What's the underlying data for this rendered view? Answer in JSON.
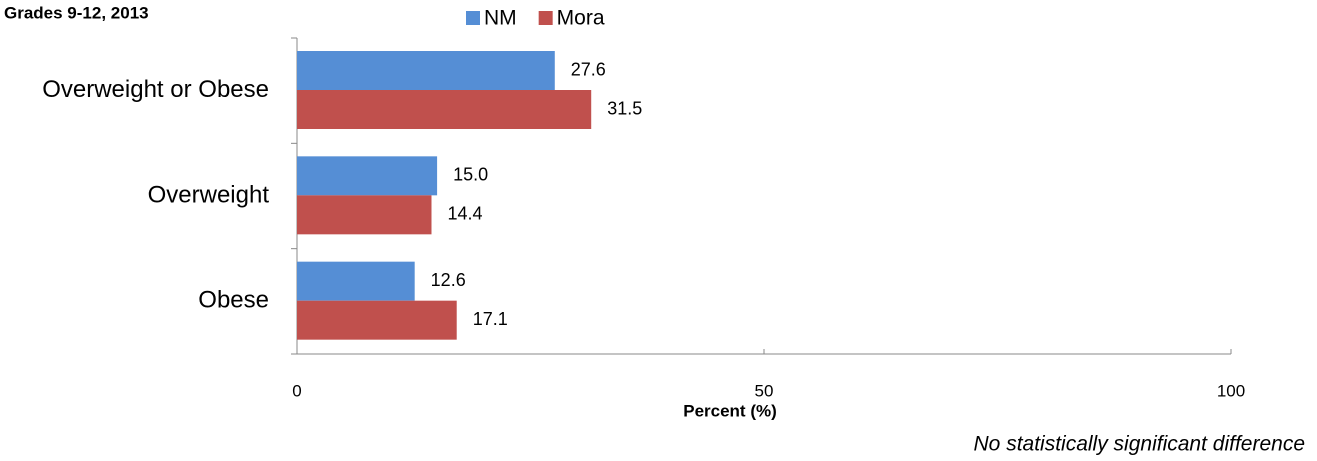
{
  "chart_data": {
    "type": "bar",
    "orientation": "horizontal",
    "title": "Grades 9-12, 2013",
    "x_label": "Percent (%)",
    "annotation": "No statistically significant difference",
    "categories": [
      "Overweight or Obese",
      "Overweight",
      "Obese"
    ],
    "series": [
      {
        "name": "NM",
        "color": "#558ed5",
        "values": [
          27.6,
          15.0,
          12.6
        ],
        "value_labels": [
          "27.6",
          "15.0",
          "12.6"
        ]
      },
      {
        "name": "Mora",
        "color": "#c0504d",
        "values": [
          31.5,
          14.4,
          17.1
        ],
        "value_labels": [
          "31.5",
          "14.4",
          "17.1"
        ]
      }
    ],
    "xlim": [
      0,
      100
    ],
    "xticks": [
      0,
      50,
      100
    ],
    "legend": "top"
  }
}
